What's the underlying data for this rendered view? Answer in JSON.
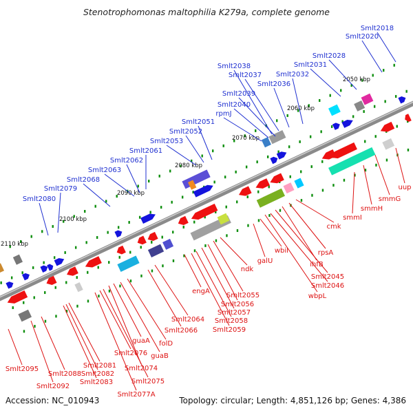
{
  "title": "Stenotrophomonas maltophilia K279a, complete genome",
  "footer": {
    "accession": "Accession: NC_010943",
    "summary": "Topology: circular; Length: 4,851,126 bp; Genes: 4,386"
  },
  "kbp_labels": [
    "2050 kbp",
    "2060 kbp",
    "2070 kbp",
    "2080 kbp",
    "2090 kbp",
    "2100 kbp",
    "2110 kbp"
  ],
  "labels_top": [
    "Smlt2018",
    "Smlt2020",
    "Smlt2028",
    "Smlt2031",
    "Smlt2032",
    "Smlt2036",
    "Smlt2037",
    "Smlt2038",
    "Smlt2039",
    "Smlt2040",
    "rpmJ",
    "Smlt2051",
    "Smlt2052",
    "Smlt2053",
    "Smlt2061",
    "Smlt2062",
    "Smlt2063",
    "Smlt2068",
    "Smlt2079",
    "Smlt2080"
  ],
  "labels_bottom": [
    "uup",
    "smmG",
    "smmH",
    "smmI",
    "cmk",
    "rpsA",
    "ihfB",
    "Smlt2045",
    "Smlt2046",
    "wbpL",
    "wbiI",
    "galU",
    "ndk",
    "Smlt2055",
    "Smlt2056",
    "Smlt2057",
    "Smlt2058",
    "Smlt2059",
    "engA",
    "Smlt2064",
    "Smlt2066",
    "folD",
    "guaB",
    "guaA",
    "Smlt2074",
    "Smlt2075",
    "Smlt2076",
    "Smlt2077A",
    "Smlt2081",
    "Smlt2082",
    "Smlt2083",
    "Smlt2088",
    "Smlt2092",
    "Smlt2095"
  ],
  "colors": {
    "label_top": "#1e2fd0",
    "label_bottom": "#dd1111",
    "backbone": "#888888",
    "gene_forward": "#1414dd",
    "gene_reverse": "#ee1111",
    "tick": "#0f8f0f"
  }
}
